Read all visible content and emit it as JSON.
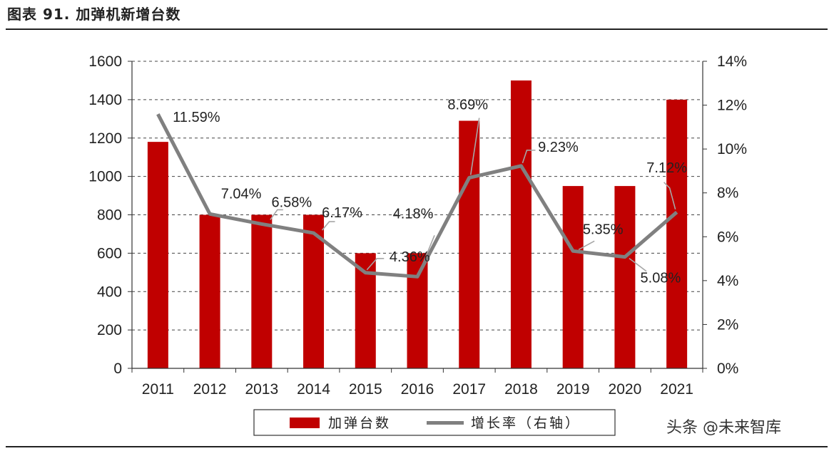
{
  "title": "图表 91. 加弹机新增台数",
  "watermark": "头条 @未来智库",
  "colors": {
    "bar": "#C00000",
    "line": "#808080",
    "leader": "#A6A6A6",
    "grid": "#444444"
  },
  "legend": {
    "bar_label": "加弹台数",
    "line_label": "增长率（右轴）"
  },
  "chart_data": {
    "type": "bar",
    "categories": [
      "2011",
      "2012",
      "2013",
      "2014",
      "2015",
      "2016",
      "2017",
      "2018",
      "2019",
      "2020",
      "2021"
    ],
    "series": [
      {
        "name": "加弹台数",
        "type": "bar",
        "axis": "left",
        "values": [
          1180,
          800,
          800,
          800,
          600,
          600,
          1290,
          1500,
          950,
          950,
          1400
        ]
      },
      {
        "name": "增长率（右轴）",
        "type": "line",
        "axis": "right",
        "values": [
          11.59,
          7.04,
          6.58,
          6.17,
          4.36,
          4.18,
          8.69,
          9.23,
          5.35,
          5.08,
          7.12
        ],
        "labels": [
          "11.59%",
          "7.04%",
          "6.58%",
          "6.17%",
          "4.36%",
          "4.18%",
          "8.69%",
          "9.23%",
          "5.35%",
          "5.08%",
          "7.12%"
        ]
      }
    ],
    "y_left": {
      "min": 0,
      "max": 1600,
      "step": 200,
      "ticks": [
        "0",
        "200",
        "400",
        "600",
        "800",
        "1000",
        "1200",
        "1400",
        "1600"
      ]
    },
    "y_right": {
      "min": 0,
      "max": 14,
      "step": 2,
      "ticks": [
        "0%",
        "2%",
        "4%",
        "6%",
        "8%",
        "10%",
        "12%",
        "14%"
      ]
    },
    "grid": "horizontal dashed",
    "legend_position": "bottom"
  }
}
